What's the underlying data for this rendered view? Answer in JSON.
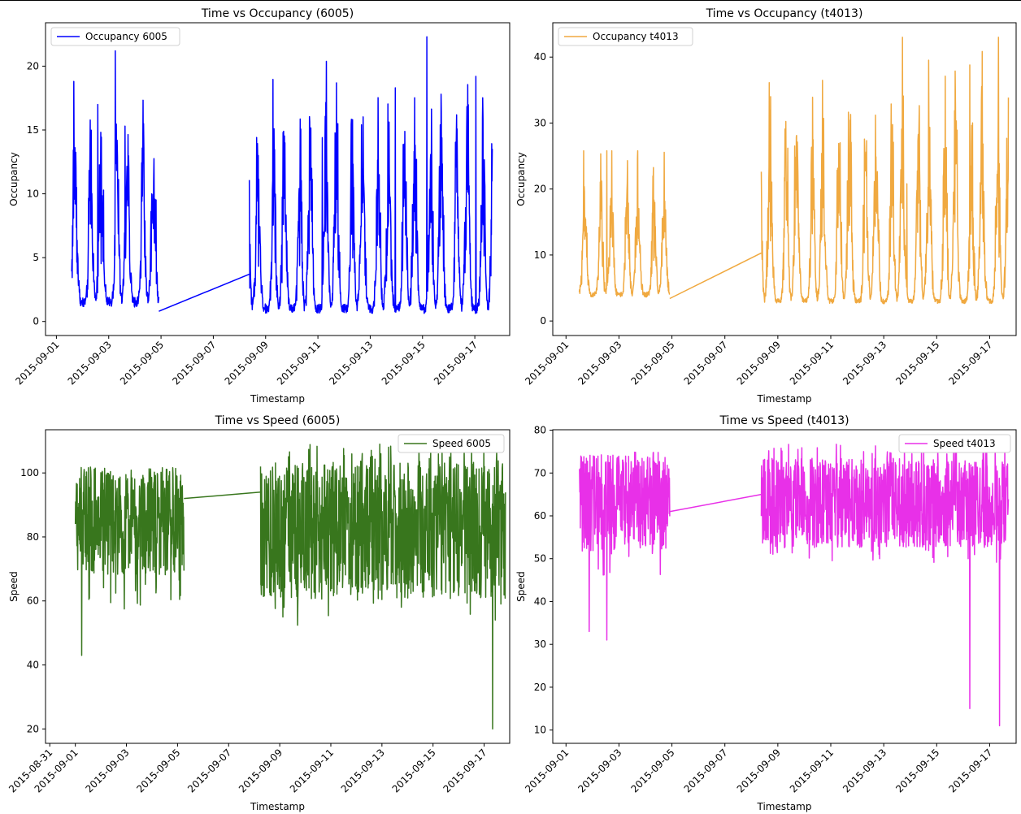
{
  "chart_data": [
    {
      "type": "line",
      "title": "Time vs Occupancy (6005)",
      "xlabel": "Timestamp",
      "ylabel": "Occupancy",
      "xlim": [
        "2015-08-31T14:00",
        "2015-09-18T08:00"
      ],
      "ylim": [
        -1.1,
        23.4
      ],
      "yticks": [
        0,
        5,
        10,
        15,
        20
      ],
      "xticks": [
        "2015-09-01",
        "2015-09-03",
        "2015-09-05",
        "2015-09-07",
        "2015-09-09",
        "2015-09-11",
        "2015-09-13",
        "2015-09-15",
        "2015-09-17"
      ],
      "legend": "upper left",
      "series": [
        {
          "name": "Occupancy 6005",
          "color": "#0000ff",
          "segments": [
            {
              "start": "2015-09-01T14:00",
              "end": "2015-09-04T22:00",
              "base": 1.5,
              "peak": 21.2
            },
            {
              "start": "2015-09-08T09:00",
              "end": "2015-09-17T16:00",
              "base": 1.0,
              "peak": 22.3
            }
          ],
          "bridge": {
            "x": [
              "2015-09-04T22:00",
              "2015-09-08T09:00"
            ],
            "y": [
              0.8,
              3.7
            ]
          },
          "highlights": [
            {
              "x": "2015-09-01T16:00",
              "y": 18.8
            },
            {
              "x": "2015-09-02T14:00",
              "y": 17.0
            },
            {
              "x": "2015-09-03T06:00",
              "y": 21.2
            },
            {
              "x": "2015-09-03T15:00",
              "y": 15.3
            },
            {
              "x": "2015-09-04T08:00",
              "y": 15.5
            },
            {
              "x": "2015-09-11T04:00",
              "y": 14.4
            },
            {
              "x": "2015-09-13T23:00",
              "y": 18.3
            },
            {
              "x": "2015-09-15T04:00",
              "y": 22.3
            },
            {
              "x": "2015-09-17T01:00",
              "y": 19.2
            }
          ]
        }
      ]
    },
    {
      "type": "line",
      "title": "Time vs Occupancy (t4013)",
      "xlabel": "Timestamp",
      "ylabel": "Occupancy",
      "xlim": [
        "2015-08-31T12:00",
        "2015-09-18T00:00"
      ],
      "ylim": [
        -2.2,
        45.2
      ],
      "yticks": [
        0,
        10,
        20,
        30,
        40
      ],
      "xticks": [
        "2015-09-01",
        "2015-09-03",
        "2015-09-05",
        "2015-09-07",
        "2015-09-09",
        "2015-09-11",
        "2015-09-13",
        "2015-09-15",
        "2015-09-17"
      ],
      "legend": "upper left",
      "series": [
        {
          "name": "Occupancy t4013",
          "color": "#f0a940",
          "segments": [
            {
              "start": "2015-09-01T12:00",
              "end": "2015-09-04T22:00",
              "base": 4.0,
              "peak": 25.8
            },
            {
              "start": "2015-09-08T09:00",
              "end": "2015-09-17T17:00",
              "base": 3.0,
              "peak": 43.0
            }
          ],
          "bridge": {
            "x": [
              "2015-09-04T22:00",
              "2015-09-08T09:00"
            ],
            "y": [
              3.4,
              10.3
            ]
          },
          "highlights": [
            {
              "x": "2015-09-01T16:00",
              "y": 25.8
            },
            {
              "x": "2015-09-02T13:00",
              "y": 25.8
            },
            {
              "x": "2015-09-13T21:00",
              "y": 20.8
            },
            {
              "x": "2015-09-16T06:00",
              "y": 38.8
            },
            {
              "x": "2015-09-17T08:00",
              "y": 43.0
            }
          ]
        }
      ]
    },
    {
      "type": "line",
      "title": "Time vs Speed (6005)",
      "xlabel": "Timestamp",
      "ylabel": "Speed",
      "xlim": [
        "2015-08-30T20:00",
        "2015-09-18T00:00"
      ],
      "ylim": [
        15.5,
        113.5
      ],
      "yticks": [
        20,
        40,
        60,
        80,
        100
      ],
      "xticks": [
        "2015-08-31",
        "2015-09-01",
        "2015-09-03",
        "2015-09-05",
        "2015-09-07",
        "2015-09-09",
        "2015-09-11",
        "2015-09-13",
        "2015-09-15",
        "2015-09-17"
      ],
      "legend": "upper right",
      "series": [
        {
          "name": "Speed 6005",
          "color": "#38761d",
          "segments": [
            {
              "start": "2015-09-01T00:00",
              "end": "2015-09-05T06:00",
              "base": 85,
              "low": 57,
              "high": 102
            },
            {
              "start": "2015-09-08T06:00",
              "end": "2015-09-17T20:00",
              "base": 82,
              "low": 52,
              "high": 109
            }
          ],
          "bridge": {
            "x": [
              "2015-09-05T06:00",
              "2015-09-08T06:00"
            ],
            "y": [
              92,
              94
            ]
          },
          "highlights": [
            {
              "x": "2015-09-01T06:00",
              "y": 43
            },
            {
              "x": "2015-09-08T06:00",
              "y": 102
            },
            {
              "x": "2015-09-12T22:00",
              "y": 109
            },
            {
              "x": "2015-09-17T08:00",
              "y": 20
            }
          ]
        }
      ]
    },
    {
      "type": "line",
      "title": "Time vs Speed (t4013)",
      "xlabel": "Timestamp",
      "ylabel": "Speed",
      "xlim": [
        "2015-08-31T12:00",
        "2015-09-18T00:00"
      ],
      "ylim": [
        6.9,
        80.1
      ],
      "yticks": [
        10,
        20,
        30,
        40,
        50,
        60,
        70,
        80
      ],
      "xticks": [
        "2015-09-01",
        "2015-09-03",
        "2015-09-05",
        "2015-09-07",
        "2015-09-09",
        "2015-09-11",
        "2015-09-13",
        "2015-09-15",
        "2015-09-17"
      ],
      "legend": "upper right",
      "series": [
        {
          "name": "Speed t4013",
          "color": "#e830e8",
          "segments": [
            {
              "start": "2015-09-01T12:00",
              "end": "2015-09-04T22:00",
              "base": 63,
              "low": 45,
              "high": 75
            },
            {
              "start": "2015-09-08T09:00",
              "end": "2015-09-17T17:00",
              "base": 63,
              "low": 49,
              "high": 77
            }
          ],
          "bridge": {
            "x": [
              "2015-09-04T22:00",
              "2015-09-08T09:00"
            ],
            "y": [
              61,
              65
            ]
          },
          "highlights": [
            {
              "x": "2015-09-01T21:00",
              "y": 33
            },
            {
              "x": "2015-09-02T13:00",
              "y": 31
            },
            {
              "x": "2015-09-16T06:00",
              "y": 15
            },
            {
              "x": "2015-09-16T18:00",
              "y": 75
            },
            {
              "x": "2015-09-17T09:00",
              "y": 11
            }
          ]
        }
      ]
    }
  ]
}
